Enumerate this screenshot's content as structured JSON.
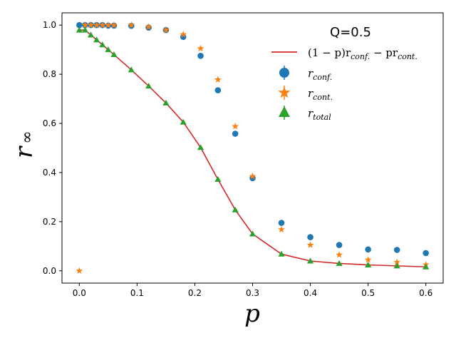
{
  "chart_data": {
    "type": "scatter",
    "title": "",
    "legend_title": "Q=0.5",
    "legend_position": "top-right",
    "xlabel": "p",
    "ylabel_main": "r",
    "ylabel_sub": "∞",
    "xlim": [
      -0.03,
      0.63
    ],
    "ylim": [
      -0.05,
      1.05
    ],
    "xticks": [
      0.0,
      0.1,
      0.2,
      0.3,
      0.4,
      0.5,
      0.6
    ],
    "xtick_labels": [
      "0.0",
      "0.1",
      "0.2",
      "0.3",
      "0.4",
      "0.5",
      "0.6"
    ],
    "yticks": [
      0.0,
      0.2,
      0.4,
      0.6,
      0.8,
      1.0
    ],
    "ytick_labels": [
      "0.0",
      "0.2",
      "0.4",
      "0.6",
      "0.8",
      "1.0"
    ],
    "grid": false,
    "series": [
      {
        "name": "(1 − p)r_conf. − pr_cont.",
        "legend_label": "(1 − p)r",
        "legend_sub1": "conf.",
        "legend_mid": " − pr",
        "legend_sub2": "cont.",
        "kind": "line",
        "color": "#d62728",
        "x": [
          0.0,
          0.01,
          0.02,
          0.03,
          0.04,
          0.05,
          0.06,
          0.09,
          0.12,
          0.15,
          0.18,
          0.21,
          0.24,
          0.27,
          0.3,
          0.35,
          0.4,
          0.45,
          0.5,
          0.55,
          0.6
        ],
        "y": [
          0.98,
          0.98,
          0.96,
          0.94,
          0.92,
          0.9,
          0.88,
          0.818,
          0.752,
          0.683,
          0.605,
          0.502,
          0.372,
          0.248,
          0.15,
          0.068,
          0.04,
          0.03,
          0.024,
          0.02,
          0.016
        ]
      },
      {
        "name": "r_conf.",
        "legend_label": "r",
        "legend_sub": "conf.",
        "kind": "scatter",
        "marker": "circle",
        "color": "#1f77b4",
        "x": [
          0.0,
          0.01,
          0.02,
          0.03,
          0.04,
          0.05,
          0.06,
          0.09,
          0.12,
          0.15,
          0.18,
          0.21,
          0.24,
          0.27,
          0.3,
          0.35,
          0.4,
          0.45,
          0.5,
          0.55,
          0.6
        ],
        "y": [
          1.0,
          1.0,
          1.0,
          1.0,
          1.0,
          0.998,
          0.998,
          0.997,
          0.99,
          0.98,
          0.952,
          0.875,
          0.735,
          0.558,
          0.377,
          0.195,
          0.137,
          0.105,
          0.087,
          0.085,
          0.072
        ]
      },
      {
        "name": "r_cont.",
        "legend_label": "r",
        "legend_sub": "cont.",
        "kind": "scatter",
        "marker": "star",
        "color": "#ff7f0e",
        "x": [
          0.0,
          0.01,
          0.02,
          0.03,
          0.04,
          0.05,
          0.06,
          0.09,
          0.12,
          0.15,
          0.18,
          0.21,
          0.24,
          0.27,
          0.3,
          0.35,
          0.4,
          0.45,
          0.5,
          0.55,
          0.6
        ],
        "y": [
          0.0,
          1.0,
          1.0,
          1.0,
          1.0,
          1.0,
          1.0,
          1.0,
          0.993,
          0.98,
          0.962,
          0.905,
          0.778,
          0.588,
          0.385,
          0.168,
          0.105,
          0.065,
          0.045,
          0.035,
          0.025
        ]
      },
      {
        "name": "r_total",
        "legend_label": "r",
        "legend_sub": "total",
        "kind": "scatter",
        "marker": "triangle",
        "color": "#2ca02c",
        "x": [
          0.0,
          0.01,
          0.02,
          0.03,
          0.04,
          0.05,
          0.06,
          0.09,
          0.12,
          0.15,
          0.18,
          0.21,
          0.24,
          0.27,
          0.3,
          0.35,
          0.4,
          0.45,
          0.5,
          0.55,
          0.6
        ],
        "y": [
          0.98,
          0.98,
          0.96,
          0.94,
          0.92,
          0.9,
          0.88,
          0.818,
          0.752,
          0.683,
          0.605,
          0.502,
          0.372,
          0.248,
          0.15,
          0.068,
          0.04,
          0.03,
          0.024,
          0.02,
          0.016
        ]
      }
    ]
  }
}
